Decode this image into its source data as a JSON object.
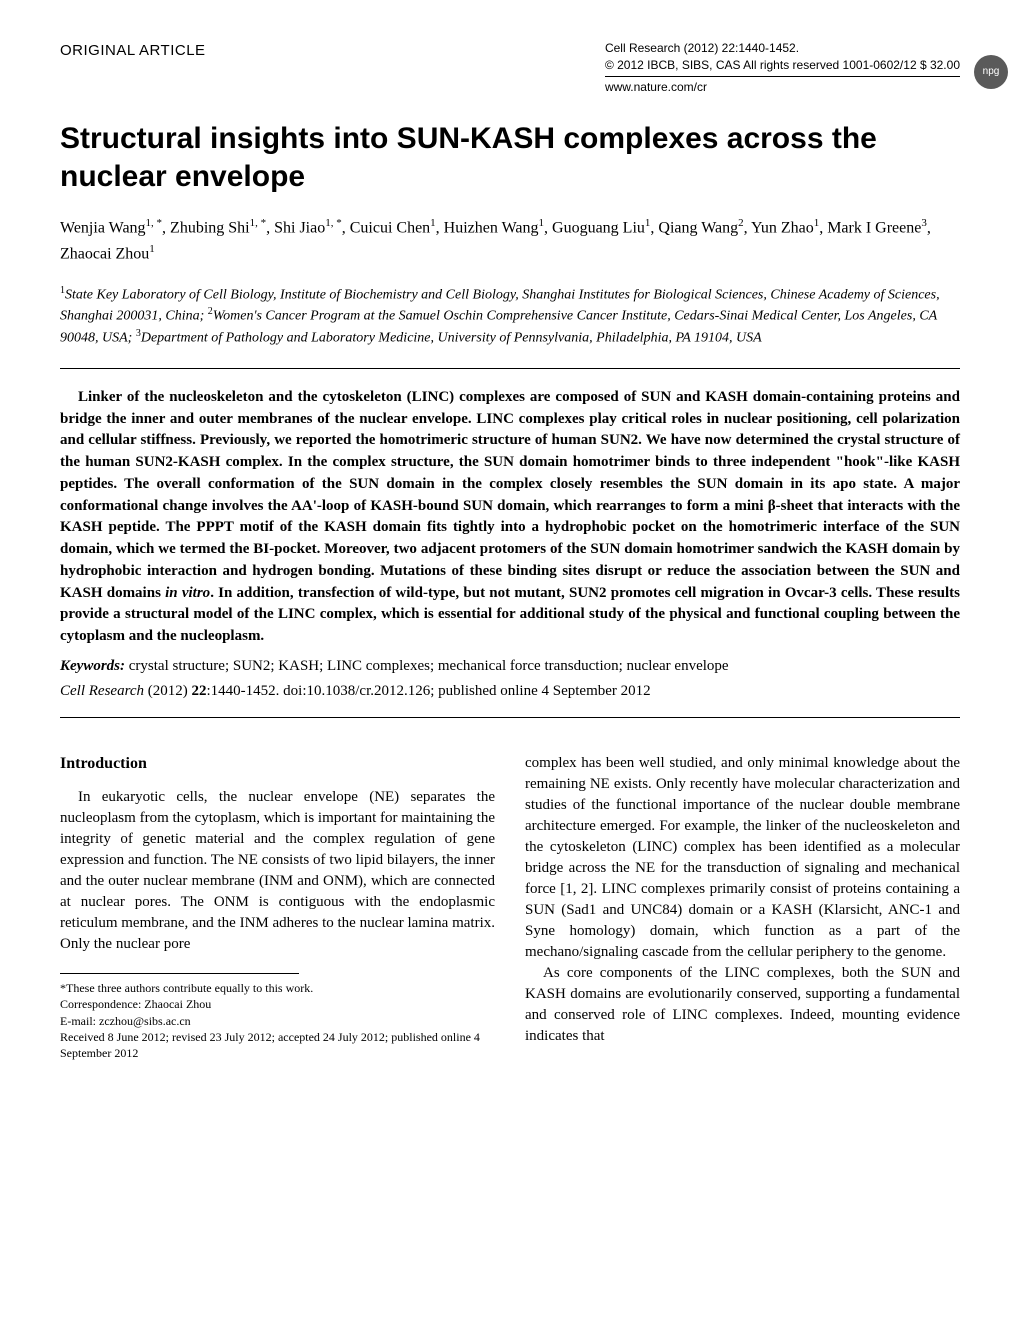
{
  "header": {
    "article_type": "ORIGINAL ARTICLE",
    "journal_line1": "Cell Research (2012) 22:1440-1452.",
    "journal_line2": "© 2012 IBCB, SIBS, CAS   All rights reserved 1001-0602/12 $ 32.00",
    "journal_line3": "www.nature.com/cr",
    "npg_label": "npg"
  },
  "title": "Structural insights into SUN-KASH complexes across the nuclear envelope",
  "authors_html": "Wenjia Wang<sup>1, *</sup>, Zhubing Shi<sup>1, *</sup>, Shi Jiao<sup>1, *</sup>, Cuicui Chen<sup>1</sup>, Huizhen Wang<sup>1</sup>, Guoguang Liu<sup>1</sup>, Qiang Wang<sup>2</sup>, Yun Zhao<sup>1</sup>, Mark I Greene<sup>3</sup>, Zhaocai Zhou<sup>1</sup>",
  "affiliations_html": "<sup>1</sup>State Key Laboratory of Cell Biology, Institute of Biochemistry and Cell Biology, Shanghai Institutes for Biological Sciences, Chinese Academy of Sciences, Shanghai 200031, China; <sup>2</sup>Women's Cancer Program at the Samuel Oschin Comprehensive Cancer Institute, Cedars-Sinai Medical Center, Los Angeles, CA 90048, USA; <sup>3</sup>Department of Pathology and Laboratory Medicine, University of Pennsylvania, Philadelphia, PA 19104, USA",
  "abstract": "Linker of the nucleoskeleton and the cytoskeleton (LINC) complexes are composed of SUN and KASH domain-containing proteins and bridge the inner and outer membranes of the nuclear envelope. LINC complexes play critical roles in nuclear positioning, cell polarization and cellular stiffness. Previously, we reported the homotrimeric structure of human SUN2. We have now determined the crystal structure of the human SUN2-KASH complex. In the complex structure, the SUN domain homotrimer binds to three independent \"hook\"-like KASH peptides. The overall conformation of the SUN domain in the complex closely resembles the SUN domain in its apo state. A major conformational change involves the AA'-loop of KASH-bound SUN domain, which rearranges to form a mini β-sheet that interacts with the KASH peptide. The PPPT motif of the KASH domain fits tightly into a hydrophobic pocket on the homotrimeric interface of the SUN domain, which we termed the BI-pocket. Moreover, two adjacent protomers of the SUN domain homotrimer sandwich the KASH domain by hydrophobic interaction and hydrogen bonding. Mutations of these binding sites disrupt or reduce the association between the SUN and KASH domains <em>in vitro</em>. In addition, transfection of wild-type, but not mutant, SUN2 promotes cell migration in Ovcar-3 cells. These results provide a structural model of the LINC complex, which is essential for additional study of the physical and functional coupling between the cytoplasm and the nucleoplasm.",
  "keywords": {
    "label": "Keywords:",
    "text": " crystal structure; SUN2; KASH; LINC complexes; mechanical force transduction; nuclear envelope"
  },
  "citation_html": "<em>Cell Research</em> (2012) <strong>22</strong>:1440-1452. doi:10.1038/cr.2012.126; published online 4 September 2012",
  "body": {
    "intro_heading": "Introduction",
    "left_para": "In eukaryotic cells, the nuclear envelope (NE) separates the nucleoplasm from the cytoplasm, which is important for maintaining the integrity of genetic material and the complex regulation of gene expression and function. The NE consists of two lipid bilayers, the inner and the outer nuclear membrane (INM and ONM), which are connected at nuclear pores. The ONM is contiguous with the endoplasmic reticulum membrane, and the INM adheres to the nuclear lamina matrix. Only the nuclear pore",
    "right_para1": "complex has been well studied, and only minimal knowledge about the remaining NE exists. Only recently have molecular characterization and studies of the functional importance of the nuclear double membrane architecture emerged. For example, the linker of the nucleoskeleton and the cytoskeleton (LINC) complex has been identified as a molecular bridge across the NE for the transduction of signaling and mechanical force [1, 2]. LINC complexes primarily consist of proteins containing a SUN (Sad1 and UNC84) domain or a KASH (Klarsicht, ANC-1 and Syne homology) domain, which function as a part of the mechano/signaling cascade from the cellular periphery to the genome.",
    "right_para2": "As core components of the LINC complexes, both the SUN and KASH domains are evolutionarily conserved, supporting a fundamental and conserved role of LINC complexes. Indeed, mounting evidence indicates that"
  },
  "footnotes": {
    "line1": "*These three authors contribute equally to this work.",
    "line2": "Correspondence: Zhaocai Zhou",
    "line3": "E-mail: zczhou@sibs.ac.cn",
    "line4": "Received 8 June 2012; revised 23 July 2012; accepted 24 July 2012; published online 4 September 2012"
  }
}
